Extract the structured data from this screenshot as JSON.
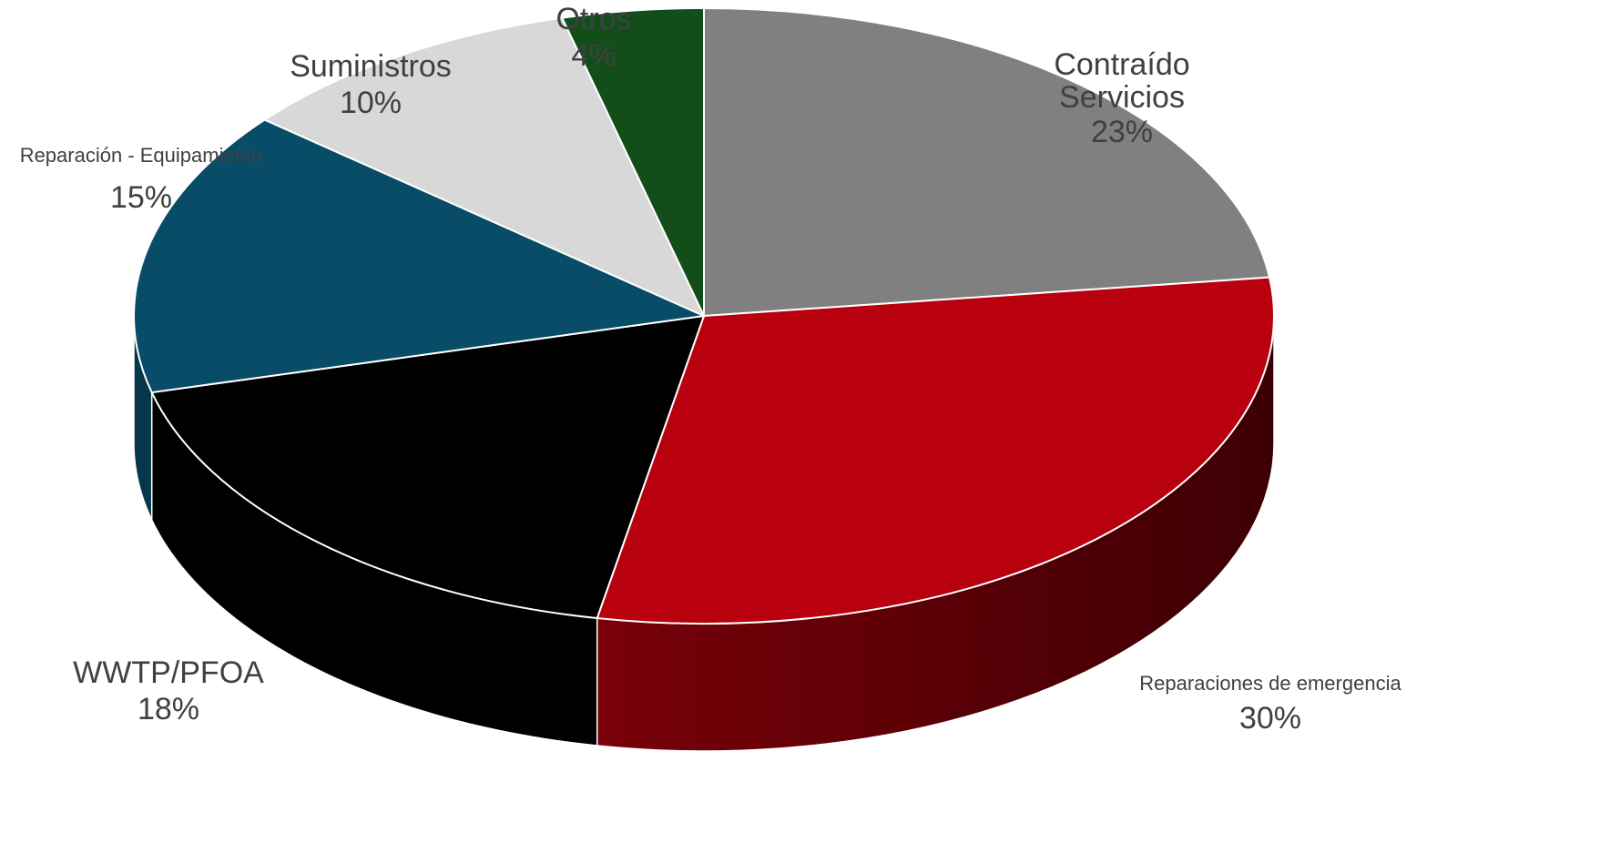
{
  "chart_data": {
    "type": "pie",
    "style": "3d",
    "title": "",
    "slices": [
      {
        "label_lines": [
          "Contraído",
          "Servicios"
        ],
        "percent_label": "23%",
        "value": 23,
        "color": "#808080",
        "side_color": "#5a5a5a"
      },
      {
        "label_lines": [
          "Reparaciones de emergencia"
        ],
        "percent_label": "30%",
        "value": 30,
        "color": "#b8000e",
        "side_color": "#5c0008"
      },
      {
        "label_lines": [
          "WWTP/PFOA"
        ],
        "percent_label": "18%",
        "value": 18,
        "color": "#000000",
        "side_color": "#000000"
      },
      {
        "label_lines": [
          "Reparación - Equipamiento"
        ],
        "percent_label": "15%",
        "value": 15,
        "color": "#084c67",
        "side_color": "#05364a"
      },
      {
        "label_lines": [
          "Suministros"
        ],
        "percent_label": "10%",
        "value": 10,
        "color": "#d8d8d8",
        "side_color": "#a8a8a8"
      },
      {
        "label_lines": [
          "Otros"
        ],
        "percent_label": "4%",
        "value": 4,
        "color": "#124d1a",
        "side_color": "#0a3010"
      }
    ]
  }
}
